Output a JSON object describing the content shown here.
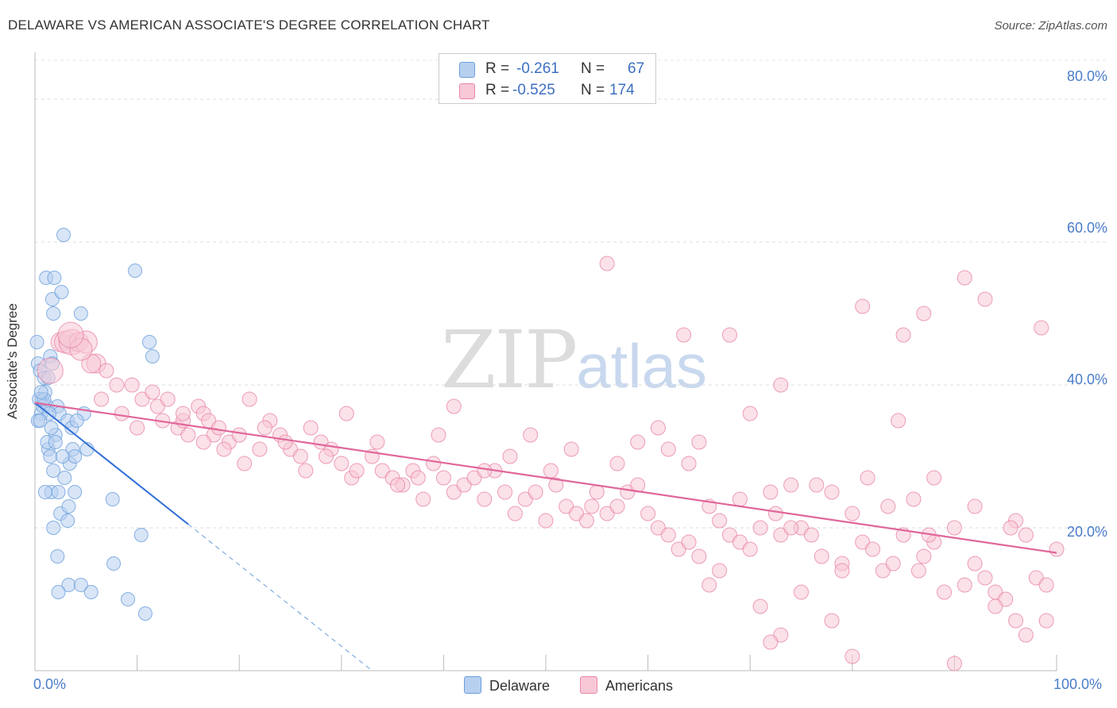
{
  "title": "DELAWARE VS AMERICAN ASSOCIATE'S DEGREE CORRELATION CHART",
  "source": "Source: ZipAtlas.com",
  "watermark": {
    "zip": "ZIP",
    "atlas": "atlas"
  },
  "legend": {
    "rows": [
      {
        "r_label": "R =",
        "r_value": "-0.261",
        "n_label": "N =",
        "n_value": "67",
        "color": "#b8d0f0",
        "border": "#6a9fdc"
      },
      {
        "r_label": "R =",
        "r_value": "-0.525",
        "n_label": "N =",
        "n_value": "174",
        "color": "#f8c8d6",
        "border": "#e886a8"
      }
    ]
  },
  "bottom_legend": [
    {
      "label": "Delaware",
      "color": "#b8d0f0",
      "border": "#6a9fdc"
    },
    {
      "label": "Americans",
      "color": "#f8c8d6",
      "border": "#e886a8"
    }
  ],
  "chart_data": {
    "type": "scatter",
    "title": "DELAWARE VS AMERICAN ASSOCIATE'S DEGREE CORRELATION CHART",
    "xlabel": "",
    "ylabel": "Associate's Degree",
    "xlim": [
      0,
      100
    ],
    "ylim": [
      0,
      85
    ],
    "x_tick_labels": [
      "0.0%",
      "100.0%"
    ],
    "y_ticks": [
      20,
      40,
      60,
      80
    ],
    "y_tick_labels": [
      "20.0%",
      "40.0%",
      "60.0%",
      "80.0%"
    ],
    "grid": true,
    "series": [
      {
        "name": "Delaware",
        "color": "#6a9fdc",
        "fill": "#b8d0f0",
        "r": -0.261,
        "n": 67,
        "trend": {
          "x": [
            0,
            15
          ],
          "y": [
            37.5,
            20.5
          ],
          "dashed_extension_to": [
            33,
            0
          ]
        },
        "points": [
          [
            0.2,
            46
          ],
          [
            0.3,
            43
          ],
          [
            0.5,
            42
          ],
          [
            0.6,
            36
          ],
          [
            0.3,
            35
          ],
          [
            0.7,
            38
          ],
          [
            1,
            39
          ],
          [
            1.2,
            37
          ],
          [
            0.9,
            41
          ],
          [
            1.5,
            44
          ],
          [
            1.3,
            31
          ],
          [
            1.8,
            28
          ],
          [
            1.5,
            30
          ],
          [
            2,
            33
          ],
          [
            2.2,
            37
          ],
          [
            1.1,
            55
          ],
          [
            1.9,
            55
          ],
          [
            1.7,
            52
          ],
          [
            2.6,
            53
          ],
          [
            1.8,
            50
          ],
          [
            2.8,
            61
          ],
          [
            3.5,
            46
          ],
          [
            4.5,
            50
          ],
          [
            2.4,
            36
          ],
          [
            3.2,
            35
          ],
          [
            3.6,
            34
          ],
          [
            1.6,
            25
          ],
          [
            2.3,
            25
          ],
          [
            3.9,
            25
          ],
          [
            1,
            25
          ],
          [
            2.5,
            22
          ],
          [
            3.3,
            23
          ],
          [
            3.2,
            21
          ],
          [
            1.8,
            20
          ],
          [
            3.7,
            31
          ],
          [
            4.8,
            36
          ],
          [
            5.1,
            31
          ],
          [
            3.4,
            29
          ],
          [
            3.9,
            30
          ],
          [
            1.6,
            34
          ],
          [
            1.2,
            32
          ],
          [
            2.2,
            16
          ],
          [
            3.3,
            12
          ],
          [
            2.3,
            11
          ],
          [
            4.5,
            12
          ],
          [
            5.5,
            11
          ],
          [
            7.7,
            15
          ],
          [
            9.1,
            10
          ],
          [
            10.4,
            19
          ],
          [
            10.8,
            8
          ],
          [
            7.6,
            24
          ],
          [
            9.8,
            56
          ],
          [
            11.2,
            46
          ],
          [
            11.5,
            44
          ],
          [
            0.4,
            38
          ],
          [
            0.8,
            37
          ],
          [
            1.4,
            36
          ],
          [
            2.7,
            30
          ],
          [
            2.0,
            32
          ],
          [
            4.1,
            35
          ],
          [
            0.5,
            35
          ],
          [
            1.7,
            43
          ],
          [
            2.9,
            27
          ],
          [
            0.9,
            38
          ],
          [
            3.0,
            46
          ],
          [
            1.3,
            41
          ],
          [
            0.6,
            39
          ]
        ]
      },
      {
        "name": "Americans",
        "color": "#e886a8",
        "fill": "#f8c8d6",
        "r": -0.525,
        "n": 174,
        "trend": {
          "x": [
            0,
            100
          ],
          "y": [
            37.5,
            16.5
          ]
        },
        "points": [
          [
            2.5,
            46
          ],
          [
            3,
            46
          ],
          [
            3.6,
            46
          ],
          [
            4.3,
            46
          ],
          [
            5,
            46
          ],
          [
            1.5,
            42
          ],
          [
            6,
            43
          ],
          [
            7,
            42
          ],
          [
            8,
            40
          ],
          [
            9.5,
            40
          ],
          [
            10.5,
            38
          ],
          [
            11.5,
            39
          ],
          [
            12,
            37
          ],
          [
            13,
            38
          ],
          [
            14,
            34
          ],
          [
            14.5,
            35
          ],
          [
            15,
            33
          ],
          [
            16,
            37
          ],
          [
            16.5,
            36
          ],
          [
            17,
            35
          ],
          [
            17.5,
            33
          ],
          [
            18,
            34
          ],
          [
            19,
            32
          ],
          [
            20,
            33
          ],
          [
            21,
            38
          ],
          [
            22,
            31
          ],
          [
            23,
            35
          ],
          [
            24,
            33
          ],
          [
            25,
            31
          ],
          [
            26,
            30
          ],
          [
            27,
            34
          ],
          [
            28,
            32
          ],
          [
            29,
            31
          ],
          [
            30,
            29
          ],
          [
            31,
            27
          ],
          [
            31.5,
            28
          ],
          [
            33,
            30
          ],
          [
            34,
            28
          ],
          [
            35,
            27
          ],
          [
            36,
            26
          ],
          [
            37,
            28
          ],
          [
            38,
            24
          ],
          [
            39,
            29
          ],
          [
            40,
            27
          ],
          [
            41,
            25
          ],
          [
            42,
            26
          ],
          [
            43,
            27
          ],
          [
            44,
            24
          ],
          [
            45,
            28
          ],
          [
            46,
            25
          ],
          [
            47,
            22
          ],
          [
            48,
            24
          ],
          [
            49,
            25
          ],
          [
            50,
            21
          ],
          [
            51,
            26
          ],
          [
            52,
            23
          ],
          [
            53,
            22
          ],
          [
            54,
            21
          ],
          [
            55,
            25
          ],
          [
            56,
            22
          ],
          [
            57,
            23
          ],
          [
            58,
            25
          ],
          [
            59,
            26
          ],
          [
            60,
            22
          ],
          [
            61,
            20
          ],
          [
            62,
            19
          ],
          [
            63,
            17
          ],
          [
            64,
            18
          ],
          [
            65,
            16
          ],
          [
            66,
            23
          ],
          [
            67,
            21
          ],
          [
            68,
            19
          ],
          [
            69,
            18
          ],
          [
            70,
            17
          ],
          [
            71,
            20
          ],
          [
            72,
            25
          ],
          [
            73,
            19
          ],
          [
            74,
            26
          ],
          [
            75,
            20
          ],
          [
            76,
            19
          ],
          [
            77,
            16
          ],
          [
            78,
            25
          ],
          [
            79,
            15
          ],
          [
            80,
            22
          ],
          [
            81,
            18
          ],
          [
            82,
            17
          ],
          [
            83,
            14
          ],
          [
            84,
            15
          ],
          [
            85,
            19
          ],
          [
            86,
            24
          ],
          [
            87,
            16
          ],
          [
            88,
            18
          ],
          [
            89,
            11
          ],
          [
            90,
            20
          ],
          [
            91,
            12
          ],
          [
            92,
            15
          ],
          [
            93,
            13
          ],
          [
            94,
            11
          ],
          [
            95,
            10
          ],
          [
            96,
            21
          ],
          [
            97,
            19
          ],
          [
            98,
            13
          ],
          [
            99,
            12
          ],
          [
            100,
            17
          ],
          [
            73,
            5
          ],
          [
            78,
            7
          ],
          [
            76.5,
            26
          ],
          [
            79,
            14
          ],
          [
            75,
            11
          ],
          [
            72.5,
            22
          ],
          [
            83.5,
            23
          ],
          [
            88,
            27
          ],
          [
            87,
            50
          ],
          [
            91,
            55
          ],
          [
            93,
            52
          ],
          [
            98.5,
            48
          ],
          [
            86.5,
            14
          ],
          [
            94,
            9
          ],
          [
            96,
            7
          ],
          [
            87.5,
            19
          ],
          [
            73,
            40
          ],
          [
            70,
            36
          ],
          [
            65,
            32
          ],
          [
            61,
            34
          ],
          [
            56,
            57
          ],
          [
            59,
            32
          ],
          [
            66,
            12
          ],
          [
            71,
            9
          ],
          [
            64,
            29
          ],
          [
            69,
            24
          ],
          [
            72,
            4
          ],
          [
            80,
            2
          ],
          [
            90,
            1
          ],
          [
            97,
            5
          ],
          [
            99,
            7
          ],
          [
            95.5,
            20
          ],
          [
            92,
            23
          ],
          [
            81.5,
            27
          ],
          [
            67,
            14
          ],
          [
            74,
            20
          ],
          [
            62,
            31
          ],
          [
            63.5,
            47
          ],
          [
            68,
            47
          ],
          [
            85,
            47
          ],
          [
            81,
            51
          ],
          [
            84.5,
            35
          ],
          [
            57,
            29
          ],
          [
            54.5,
            23
          ],
          [
            52.5,
            31
          ],
          [
            50.5,
            28
          ],
          [
            48.5,
            33
          ],
          [
            46.5,
            30
          ],
          [
            44,
            28
          ],
          [
            41,
            37
          ],
          [
            39.5,
            33
          ],
          [
            37.5,
            27
          ],
          [
            35.5,
            26
          ],
          [
            33.5,
            32
          ],
          [
            30.5,
            36
          ],
          [
            28.5,
            30
          ],
          [
            26.5,
            28
          ],
          [
            24.5,
            32
          ],
          [
            22.5,
            34
          ],
          [
            20.5,
            29
          ],
          [
            18.5,
            31
          ],
          [
            16.5,
            32
          ],
          [
            14.5,
            36
          ],
          [
            12.5,
            35
          ],
          [
            10,
            34
          ],
          [
            8.5,
            36
          ],
          [
            6.5,
            38
          ],
          [
            5.5,
            43
          ],
          [
            4.5,
            45
          ],
          [
            3.5,
            47
          ]
        ]
      }
    ]
  }
}
